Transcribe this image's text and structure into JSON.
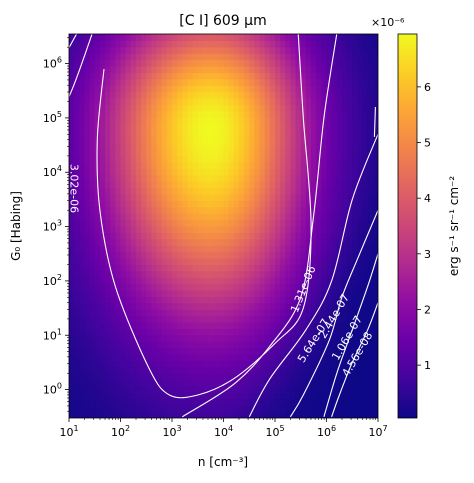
{
  "chart_data": {
    "type": "heatmap",
    "title": "[C I] 609 μm",
    "xlabel": "n [cm⁻³]",
    "ylabel": "G₀ [Habing]",
    "x_scale": "log",
    "y_scale": "log",
    "xlim": [
      10,
      10000000
    ],
    "ylim": [
      0.3,
      3500000
    ],
    "x_ticks": [
      {
        "value": 10,
        "base": "10",
        "exp": "1"
      },
      {
        "value": 100,
        "base": "10",
        "exp": "2"
      },
      {
        "value": 1000,
        "base": "10",
        "exp": "3"
      },
      {
        "value": 10000,
        "base": "10",
        "exp": "4"
      },
      {
        "value": 100000,
        "base": "10",
        "exp": "5"
      },
      {
        "value": 1000000,
        "base": "10",
        "exp": "6"
      },
      {
        "value": 10000000,
        "base": "10",
        "exp": "7"
      }
    ],
    "y_ticks": [
      {
        "value": 1,
        "base": "10",
        "exp": "0"
      },
      {
        "value": 10,
        "base": "10",
        "exp": "1"
      },
      {
        "value": 100,
        "base": "10",
        "exp": "2"
      },
      {
        "value": 1000,
        "base": "10",
        "exp": "3"
      },
      {
        "value": 10000,
        "base": "10",
        "exp": "4"
      },
      {
        "value": 100000,
        "base": "10",
        "exp": "5"
      },
      {
        "value": 1000000,
        "base": "10",
        "exp": "6"
      }
    ],
    "colorbar": {
      "label": "erg s⁻¹ sr⁻¹ cm⁻²",
      "multiplier": "×10⁻⁶",
      "range": [
        5e-08,
        6.95e-06
      ],
      "ticks": [
        "1",
        "2",
        "3",
        "4",
        "5",
        "6"
      ],
      "colormap": "plasma"
    },
    "peak": {
      "log_n": 3.75,
      "log_g0": 4.8,
      "value": 6.95e-06
    },
    "contour_levels": [
      "4.56e-08",
      "1.06e-07",
      "2.44e-07",
      "5.64e-07",
      "1.31e-06",
      "3.02e-06"
    ],
    "contours": [
      {
        "level": "3.02e-06",
        "points": [
          [
            1.68,
            5.9
          ],
          [
            1.55,
            4.6
          ],
          [
            1.6,
            3.3
          ],
          [
            1.9,
            1.9
          ],
          [
            2.55,
            0.4
          ],
          [
            2.95,
            -0.1
          ],
          [
            3.5,
            -0.1
          ],
          [
            4.2,
            0.2
          ],
          [
            5.0,
            0.85
          ],
          [
            5.55,
            1.5
          ],
          [
            5.7,
            3.0
          ],
          [
            5.55,
            5.0
          ],
          [
            5.45,
            6.55
          ]
        ]
      },
      {
        "level": "1.31e-06 (left)",
        "points": [
          [
            1.45,
            6.55
          ],
          [
            1.05,
            5.5
          ],
          [
            0.55,
            4.5
          ],
          [
            0.35,
            3.3
          ],
          [
            0.35,
            2.0
          ],
          [
            0.42,
            0.3
          ],
          [
            0.45,
            -0.5
          ]
        ]
      },
      {
        "level": "1.31e-06 (right)",
        "points": [
          [
            6.2,
            6.55
          ],
          [
            5.95,
            5.0
          ],
          [
            5.75,
            3.2
          ],
          [
            5.5,
            1.7
          ],
          [
            4.9,
            0.8
          ],
          [
            4.2,
            0.1
          ],
          [
            3.2,
            -0.5
          ]
        ]
      },
      {
        "level": "5.64e-07 (upper)",
        "points": [
          [
            0.02,
            4.3
          ],
          [
            0.5,
            5.4
          ],
          [
            1.15,
            6.55
          ]
        ]
      },
      {
        "level": "5.64e-07 (lower)",
        "points": [
          [
            7.0,
            4.7
          ],
          [
            6.5,
            3.5
          ],
          [
            6.1,
            2.0
          ],
          [
            5.6,
            1.1
          ],
          [
            4.9,
            0.2
          ],
          [
            4.5,
            -0.5
          ]
        ]
      },
      {
        "level": "2.44e-07",
        "points": [
          [
            7.0,
            3.3
          ],
          [
            6.6,
            2.4
          ],
          [
            6.3,
            1.7
          ],
          [
            6.05,
            0.9
          ],
          [
            5.55,
            -0.1
          ],
          [
            5.3,
            -0.5
          ]
        ]
      },
      {
        "level": "1.06e-07",
        "points": [
          [
            7.0,
            2.5
          ],
          [
            6.8,
            1.9
          ],
          [
            6.5,
            1.1
          ],
          [
            6.2,
            0.3
          ],
          [
            5.95,
            -0.5
          ]
        ]
      },
      {
        "level": "4.56e-08",
        "points": [
          [
            7.0,
            1.6
          ],
          [
            6.8,
            1.1
          ],
          [
            6.5,
            0.5
          ],
          [
            6.25,
            -0.1
          ],
          [
            6.1,
            -0.5
          ]
        ]
      },
      {
        "level": "upper-left a",
        "points": [
          [
            0.02,
            5.4
          ],
          [
            0.45,
            6.0
          ],
          [
            0.8,
            6.55
          ]
        ]
      },
      {
        "level": "upper-left b",
        "points": [
          [
            0.02,
            6.0
          ],
          [
            0.3,
            6.35
          ],
          [
            0.5,
            6.55
          ]
        ]
      },
      {
        "level": "upper-left c",
        "points": [
          [
            0.02,
            6.35
          ],
          [
            0.2,
            6.55
          ]
        ]
      },
      {
        "level": "right edge",
        "points": [
          [
            6.95,
            5.2
          ],
          [
            6.93,
            4.65
          ]
        ]
      }
    ],
    "contour_labels": [
      {
        "text": "5.64e-07",
        "log_n": 0.45,
        "log_g0": 5.15,
        "angle": -70
      },
      {
        "text": "1.31e-06",
        "log_n": 0.38,
        "log_g0": 3.35,
        "angle": -90
      },
      {
        "text": "3.02e-06",
        "log_n": 1.1,
        "log_g0": 3.7,
        "angle": 90
      },
      {
        "text": "1.31e-06",
        "log_n": 5.55,
        "log_g0": 1.85,
        "angle": -68
      },
      {
        "text": "5.64e-07",
        "log_n": 5.75,
        "log_g0": 0.9,
        "angle": -58
      },
      {
        "text": "2.44e-07",
        "log_n": 6.15,
        "log_g0": 1.35,
        "angle": -60
      },
      {
        "text": "1.06e-07",
        "log_n": 6.4,
        "log_g0": 0.95,
        "angle": -60
      },
      {
        "text": "4.56e-08",
        "log_n": 6.6,
        "log_g0": 0.65,
        "angle": -60
      }
    ]
  }
}
